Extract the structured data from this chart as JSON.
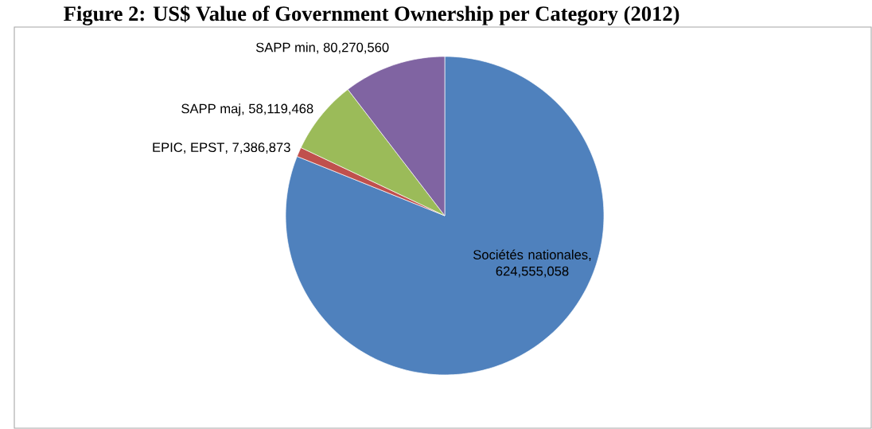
{
  "chart_data": {
    "type": "pie",
    "title": "Figure 2: US$ Value of Government Ownership per Category (2012)",
    "categories": [
      "Sociétés nationales",
      "EPIC, EPST",
      "SAPP maj",
      "SAPP min"
    ],
    "values": [
      624555058,
      7386873,
      58119468,
      80270560
    ],
    "value_labels": [
      ", 624,555,058",
      ", 7,386,873",
      ", 58,119,468",
      ", 80,270,560"
    ],
    "colors": [
      "#4f81bd",
      "#c0504d",
      "#9bbb59",
      "#8064a2"
    ]
  }
}
